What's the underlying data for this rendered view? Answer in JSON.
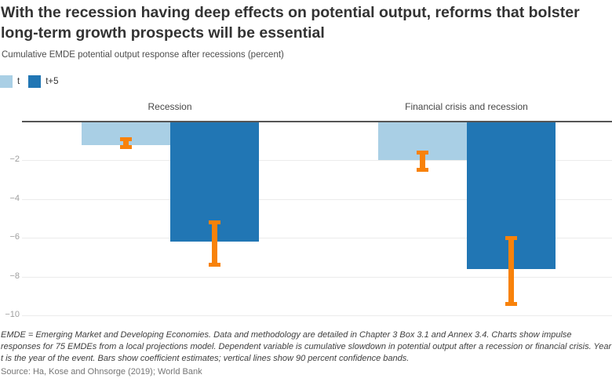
{
  "title": "With the recession having deep effects on potential output, reforms that bolster long-term growth prospects will be essential",
  "subtitle": "Cumulative EMDE potential output response after recessions (percent)",
  "legend": [
    {
      "label": "t",
      "color": "#a9cfe5"
    },
    {
      "label": "t+5",
      "color": "#2176b4"
    }
  ],
  "colors": {
    "light_blue": "#a9cfe5",
    "dark_blue": "#2176b4",
    "orange": "#f8820a",
    "zero_line": "#555555",
    "gridline": "#ebebeb",
    "tick_label": "#9e9e9e"
  },
  "chart_data": {
    "type": "bar",
    "title": "Cumulative EMDE potential output response after recessions (percent)",
    "categories": [
      "Recession",
      "Financial crisis and recession"
    ],
    "series": [
      {
        "name": "t",
        "color": "#a9cfe5",
        "values": [
          -1.2,
          -2.0
        ],
        "ci": [
          {
            "high": -0.8,
            "low": -1.4
          },
          {
            "high": -1.5,
            "low": -2.6
          }
        ]
      },
      {
        "name": "t+5",
        "color": "#2176b4",
        "values": [
          -6.2,
          -7.6
        ],
        "ci": [
          {
            "high": -5.1,
            "low": -7.5
          },
          {
            "high": -5.9,
            "low": -9.5
          }
        ]
      }
    ],
    "yticks": [
      -2,
      -4,
      -6,
      -8,
      -10
    ],
    "yticklabels": [
      "−2",
      "−4",
      "−6",
      "−8",
      "−10"
    ],
    "ylim": [
      -10,
      0
    ],
    "error_bars_note": "90 percent confidence bands",
    "error_bar_color": "#f8820a",
    "legend_position": "top-left",
    "grid": true
  },
  "footnote": "EMDE = Emerging Market and Developing Economies. Data and methodology are detailed in Chapter 3 Box 3.1 and Annex 3.4. Charts show impulse responses for 75 EMDEs from a local projections model. Dependent variable is cumulative slowdown in potential output after a recession or financial crisis. Year t is the year of the event. Bars show coefficient estimates; vertical lines show 90 percent confidence bands.",
  "source": "Source: Ha, Kose and Ohnsorge (2019); World Bank"
}
